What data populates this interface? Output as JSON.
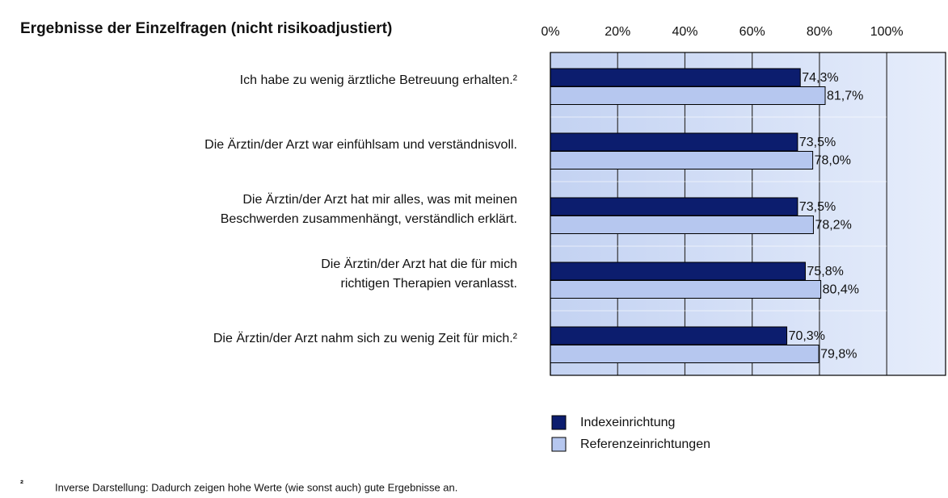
{
  "chart_data": {
    "type": "bar",
    "orientation": "horizontal",
    "title": "Ergebnisse der Einzelfragen (nicht risikoadjustiert)",
    "categories": [
      "Ich habe zu wenig ärztliche Betreuung erhalten.²",
      "Die Ärztin/der Arzt war einfühlsam und verständnisvoll.",
      "Die Ärztin/der Arzt hat mir alles, was mit meinen\nBeschwerden zusammenhängt, verständlich erklärt.",
      "Die Ärztin/der Arzt hat die für mich\nrichtigen Therapien veranlasst.",
      "Die Ärztin/der Arzt nahm sich zu wenig Zeit für mich.²"
    ],
    "series": [
      {
        "name": "Indexeinrichtung",
        "color": "#0c1d6e",
        "values": [
          74.3,
          73.5,
          73.5,
          75.8,
          70.3
        ],
        "value_labels": [
          "74,3%",
          "73,5%",
          "73,5%",
          "75,8%",
          "70,3%"
        ]
      },
      {
        "name": "Referenzeinrichtungen",
        "color": "#b6c7ef",
        "values": [
          81.7,
          78.0,
          78.2,
          80.4,
          79.8
        ],
        "value_labels": [
          "81,7%",
          "78,0%",
          "78,2%",
          "80,4%",
          "79,8%"
        ]
      }
    ],
    "xlim": [
      0,
      117.5
    ],
    "xticks": [
      {
        "value": 0,
        "label": "0%"
      },
      {
        "value": 20,
        "label": "20%"
      },
      {
        "value": 40,
        "label": "40%"
      },
      {
        "value": 60,
        "label": "60%"
      },
      {
        "value": 80,
        "label": "80%"
      },
      {
        "value": 100,
        "label": "100%"
      }
    ],
    "grid": true,
    "footnote": {
      "marker": "²",
      "text": "Inverse Darstellung: Dadurch zeigen hohe Werte (wie sonst auch) gute Ergebnisse an."
    }
  }
}
